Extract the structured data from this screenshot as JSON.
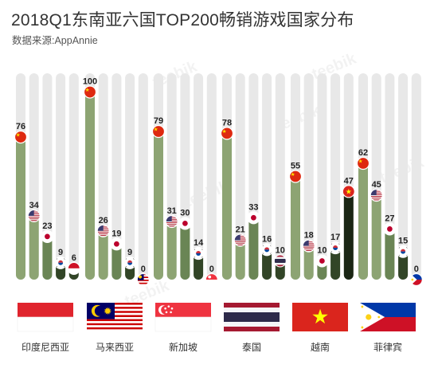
{
  "title": "2018Q1东南亚六国TOP200畅销游戏国家分布",
  "subtitle": "数据来源:AppAnnie",
  "watermark": "teebik",
  "colors": {
    "track": "#e8e8e8",
    "bar_light": "#8da473",
    "bar_mid": "#6a8555",
    "bar_dark": "#324527",
    "vn_bar": "#1a2614",
    "value_text": "#222222"
  },
  "chart_data": {
    "type": "bar",
    "title": "2018Q1东南亚六国TOP200畅销游戏国家分布",
    "groups": [
      {
        "market": "印度尼西亚",
        "flag": "indonesia",
        "bars": [
          {
            "origin": "china",
            "value": 76
          },
          {
            "origin": "usa",
            "value": 34
          },
          {
            "origin": "japan",
            "value": 23
          },
          {
            "origin": "korea",
            "value": 9
          },
          {
            "origin": "indonesia",
            "value": 6
          }
        ]
      },
      {
        "market": "马来西亚",
        "flag": "malaysia",
        "bars": [
          {
            "origin": "china",
            "value": 100
          },
          {
            "origin": "usa",
            "value": 26
          },
          {
            "origin": "japan",
            "value": 19
          },
          {
            "origin": "korea",
            "value": 9
          },
          {
            "origin": "malaysia",
            "value": 0
          }
        ]
      },
      {
        "market": "新加坡",
        "flag": "singapore",
        "bars": [
          {
            "origin": "china",
            "value": 79
          },
          {
            "origin": "usa",
            "value": 31
          },
          {
            "origin": "japan",
            "value": 30
          },
          {
            "origin": "korea",
            "value": 14
          },
          {
            "origin": "singapore",
            "value": 0
          }
        ]
      },
      {
        "market": "泰国",
        "flag": "thailand",
        "bars": [
          {
            "origin": "china",
            "value": 78
          },
          {
            "origin": "usa",
            "value": 21
          },
          {
            "origin": "japan",
            "value": 33
          },
          {
            "origin": "korea",
            "value": 16
          },
          {
            "origin": "thailand",
            "value": 10
          }
        ]
      },
      {
        "market": "越南",
        "flag": "vietnam",
        "bars": [
          {
            "origin": "china",
            "value": 55
          },
          {
            "origin": "usa",
            "value": 18
          },
          {
            "origin": "japan",
            "value": 10
          },
          {
            "origin": "korea",
            "value": 17
          },
          {
            "origin": "vietnam",
            "value": 47
          }
        ]
      },
      {
        "market": "菲律宾",
        "flag": "philippines",
        "bars": [
          {
            "origin": "china",
            "value": 62
          },
          {
            "origin": "usa",
            "value": 45
          },
          {
            "origin": "japan",
            "value": 27
          },
          {
            "origin": "korea",
            "value": 15
          },
          {
            "origin": "philippines",
            "value": 0
          }
        ]
      }
    ],
    "ylim": [
      0,
      110
    ],
    "grid": false,
    "legend": "none"
  }
}
